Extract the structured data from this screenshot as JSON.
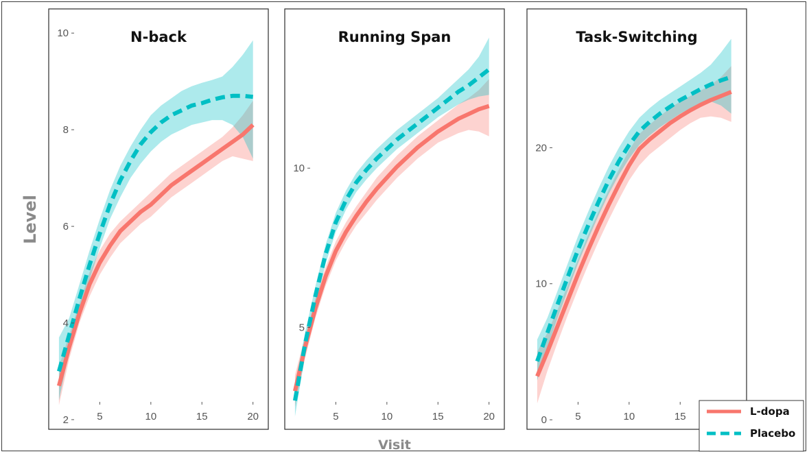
{
  "axes": {
    "xlabel": "Visit",
    "ylabel": "Level"
  },
  "legend": {
    "placement": "bottom-right",
    "entries": [
      {
        "label": "L-dopa",
        "color": "#F8766D",
        "line_style": "solid"
      },
      {
        "label": "Placebo",
        "color": "#00BFC4",
        "line_style": "dashed"
      }
    ]
  },
  "chart_data": [
    {
      "type": "line",
      "title": "N-back",
      "xlabel": "Visit",
      "ylabel": "Level",
      "xlim": [
        0,
        21.5
      ],
      "ylim": [
        1.8,
        10.5
      ],
      "xticks": [
        5,
        10,
        15,
        20
      ],
      "yticks": [
        2,
        4,
        6,
        8,
        10
      ],
      "grid": false,
      "x": [
        1,
        2,
        3,
        4,
        5,
        6,
        7,
        8,
        9,
        10,
        11,
        12,
        13,
        14,
        15,
        16,
        17,
        18,
        19,
        20
      ],
      "series": [
        {
          "name": "L-dopa",
          "values": [
            2.7,
            3.5,
            4.2,
            4.8,
            5.25,
            5.6,
            5.9,
            6.1,
            6.3,
            6.45,
            6.65,
            6.85,
            7.0,
            7.15,
            7.3,
            7.45,
            7.6,
            7.75,
            7.9,
            8.1
          ],
          "lower": [
            2.3,
            3.25,
            4.0,
            4.55,
            5.0,
            5.35,
            5.65,
            5.85,
            6.05,
            6.2,
            6.4,
            6.6,
            6.75,
            6.9,
            7.05,
            7.2,
            7.35,
            7.45,
            7.4,
            7.35
          ],
          "upper": [
            3.1,
            3.75,
            4.4,
            5.05,
            5.5,
            5.85,
            6.1,
            6.3,
            6.5,
            6.7,
            6.9,
            7.1,
            7.25,
            7.4,
            7.55,
            7.7,
            7.85,
            8.05,
            8.3,
            8.6
          ]
        },
        {
          "name": "Placebo",
          "values": [
            3.0,
            3.75,
            4.5,
            5.2,
            5.85,
            6.45,
            6.95,
            7.35,
            7.7,
            7.95,
            8.15,
            8.3,
            8.4,
            8.5,
            8.55,
            8.62,
            8.67,
            8.7,
            8.7,
            8.68
          ],
          "lower": [
            2.4,
            3.4,
            4.2,
            4.9,
            5.55,
            6.15,
            6.6,
            7.0,
            7.3,
            7.55,
            7.75,
            7.9,
            8.0,
            8.1,
            8.15,
            8.2,
            8.2,
            8.1,
            7.85,
            7.4
          ],
          "upper": [
            3.7,
            4.1,
            4.8,
            5.5,
            6.15,
            6.75,
            7.25,
            7.65,
            8.0,
            8.3,
            8.5,
            8.65,
            8.8,
            8.9,
            8.97,
            9.03,
            9.1,
            9.3,
            9.55,
            9.85
          ]
        }
      ]
    },
    {
      "type": "line",
      "title": "Running Span",
      "xlabel": "Visit",
      "ylabel": "Level",
      "xlim": [
        0,
        21.5
      ],
      "ylim": [
        1.8,
        15.0
      ],
      "xticks": [
        5,
        10,
        15,
        20
      ],
      "yticks": [
        5,
        10
      ],
      "grid": false,
      "x": [
        1,
        2,
        3,
        4,
        5,
        6,
        7,
        8,
        9,
        10,
        11,
        12,
        13,
        14,
        15,
        16,
        17,
        18,
        19,
        20
      ],
      "series": [
        {
          "name": "L-dopa",
          "values": [
            3.0,
            4.4,
            5.6,
            6.6,
            7.4,
            8.0,
            8.5,
            8.95,
            9.35,
            9.7,
            10.05,
            10.35,
            10.65,
            10.9,
            11.15,
            11.35,
            11.55,
            11.7,
            11.85,
            11.95
          ],
          "lower": [
            2.5,
            4.05,
            5.3,
            6.3,
            7.1,
            7.7,
            8.2,
            8.6,
            9.0,
            9.35,
            9.7,
            10.0,
            10.3,
            10.55,
            10.8,
            10.95,
            11.1,
            11.2,
            11.15,
            11.0
          ],
          "upper": [
            3.5,
            4.75,
            5.9,
            6.9,
            7.7,
            8.3,
            8.8,
            9.25,
            9.7,
            10.05,
            10.4,
            10.7,
            11.0,
            11.25,
            11.5,
            11.75,
            12.0,
            12.2,
            12.45,
            12.8
          ]
        },
        {
          "name": "Placebo",
          "values": [
            2.7,
            4.5,
            6.0,
            7.3,
            8.3,
            9.0,
            9.55,
            9.95,
            10.3,
            10.6,
            10.9,
            11.15,
            11.4,
            11.65,
            11.9,
            12.15,
            12.4,
            12.6,
            12.85,
            13.1
          ],
          "lower": [
            2.2,
            4.15,
            5.7,
            7.0,
            8.0,
            8.7,
            9.25,
            9.65,
            10.0,
            10.3,
            10.6,
            10.85,
            11.1,
            11.35,
            11.6,
            11.8,
            12.0,
            12.15,
            12.25,
            12.3
          ],
          "upper": [
            3.2,
            4.85,
            6.3,
            7.6,
            8.6,
            9.3,
            9.85,
            10.25,
            10.6,
            10.9,
            11.2,
            11.45,
            11.7,
            11.95,
            12.2,
            12.5,
            12.8,
            13.1,
            13.5,
            14.1
          ]
        }
      ]
    },
    {
      "type": "line",
      "title": "Task-Switching",
      "xlabel": "Visit",
      "ylabel": "Level",
      "xlim": [
        0,
        21.5
      ],
      "ylim": [
        -0.7,
        30.2
      ],
      "xticks": [
        5,
        10,
        15,
        20
      ],
      "yticks": [
        0,
        10,
        20
      ],
      "grid": false,
      "x": [
        1,
        2,
        3,
        4,
        5,
        6,
        7,
        8,
        9,
        10,
        11,
        12,
        13,
        14,
        15,
        16,
        17,
        18,
        19,
        20
      ],
      "series": [
        {
          "name": "L-dopa",
          "values": [
            3.2,
            5.0,
            6.9,
            8.8,
            10.7,
            12.5,
            14.2,
            15.8,
            17.3,
            18.7,
            19.9,
            20.6,
            21.2,
            21.8,
            22.3,
            22.75,
            23.15,
            23.5,
            23.8,
            24.1
          ],
          "lower": [
            1.2,
            3.6,
            5.7,
            7.7,
            9.6,
            11.4,
            13.1,
            14.7,
            16.2,
            17.6,
            18.7,
            19.5,
            20.1,
            20.7,
            21.3,
            21.8,
            22.2,
            22.3,
            22.2,
            21.9
          ],
          "upper": [
            5.0,
            6.4,
            8.1,
            9.9,
            11.8,
            13.6,
            15.3,
            16.9,
            18.4,
            19.8,
            21.0,
            21.7,
            22.3,
            22.9,
            23.4,
            23.8,
            24.2,
            24.6,
            25.2,
            26.0
          ]
        },
        {
          "name": "Placebo",
          "values": [
            4.3,
            6.4,
            8.5,
            10.5,
            12.5,
            14.3,
            16.0,
            17.6,
            19.0,
            20.2,
            21.2,
            21.9,
            22.5,
            23.0,
            23.5,
            23.9,
            24.3,
            24.65,
            24.95,
            25.2
          ],
          "lower": [
            2.9,
            5.3,
            7.5,
            9.5,
            11.5,
            13.3,
            15.0,
            16.6,
            18.0,
            19.2,
            20.2,
            20.9,
            21.5,
            22.0,
            22.5,
            22.9,
            23.2,
            23.4,
            23.1,
            22.5
          ],
          "upper": [
            5.9,
            7.5,
            9.5,
            11.5,
            13.5,
            15.3,
            17.0,
            18.6,
            20.0,
            21.2,
            22.2,
            22.9,
            23.5,
            24.0,
            24.5,
            25.0,
            25.5,
            26.1,
            27.0,
            28.0
          ]
        }
      ]
    }
  ]
}
